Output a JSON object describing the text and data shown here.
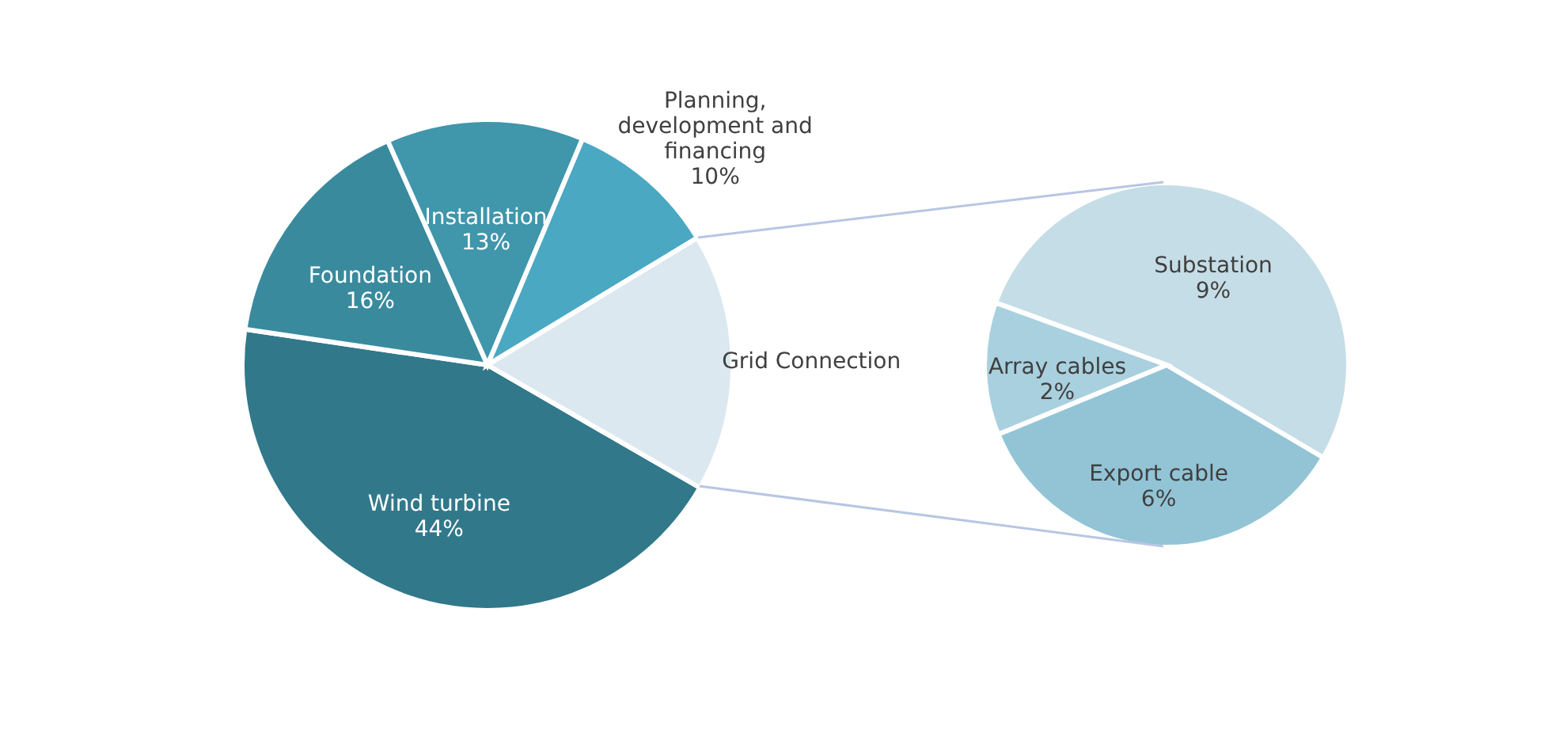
{
  "chart_data": [
    {
      "type": "pie",
      "categories": [
        "Wind turbine",
        "Foundation",
        "Installation",
        "Planning, development and financing",
        "Grid Connection"
      ],
      "values": [
        44,
        16,
        13,
        10,
        17
      ],
      "colors": [
        "#31788a",
        "#3a8a9e",
        "#4096ab",
        "#4aa8c2",
        "#dce8ef"
      ],
      "value_labels": [
        "44%",
        "16%",
        "13%",
        "10%",
        null
      ]
    },
    {
      "type": "pie",
      "categories": [
        "Substation",
        "Export cable",
        "Array cables"
      ],
      "values": [
        9,
        6,
        2
      ],
      "colors": [
        "#c5dde6",
        "#92c4d6",
        "#a9d0de"
      ],
      "value_labels": [
        "9%",
        "6%",
        "2%"
      ]
    }
  ]
}
